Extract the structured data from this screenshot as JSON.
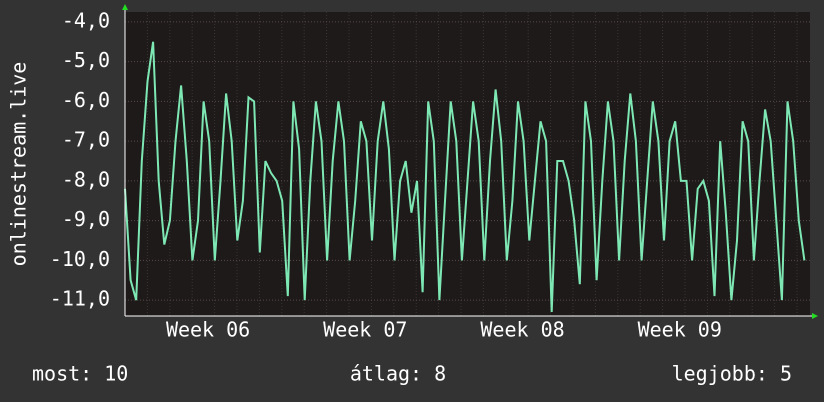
{
  "chart_data": {
    "type": "line",
    "y_label": "onlinestream.live",
    "x": [
      0,
      0.25,
      0.5,
      0.75,
      1,
      1.25,
      1.5,
      1.75,
      2,
      2.25,
      2.5,
      2.75,
      3,
      3.25,
      3.5,
      3.75,
      4,
      4.25,
      4.5,
      4.75,
      5,
      5.25,
      5.5,
      5.75,
      6,
      6.25,
      6.5,
      6.75,
      7,
      7.25,
      7.5,
      7.75,
      8,
      8.25,
      8.5,
      8.75,
      9,
      9.25,
      9.5,
      9.75,
      10,
      10.25,
      10.5,
      10.75,
      11,
      11.25,
      11.5,
      11.75,
      12,
      12.25,
      12.5,
      12.75,
      13,
      13.25,
      13.5,
      13.75,
      14,
      14.25,
      14.5,
      14.75,
      15,
      15.25,
      15.5,
      15.75,
      16,
      16.25,
      16.5,
      16.75,
      17,
      17.25,
      17.5,
      17.75,
      18,
      18.25,
      18.5,
      18.75,
      19,
      19.25,
      19.5,
      19.75,
      20,
      20.25,
      20.5,
      20.75,
      21,
      21.25,
      21.5,
      21.75,
      22,
      22.25,
      22.5,
      22.75,
      23,
      23.25,
      23.5,
      23.75,
      24,
      24.25,
      24.5,
      24.75,
      25,
      25.25,
      25.5,
      25.75,
      26,
      26.25,
      26.5,
      26.75,
      27,
      27.25,
      27.5,
      27.75,
      28,
      28.25,
      28.5,
      28.75,
      29,
      29.25,
      29.5,
      29.75,
      30,
      30.25
    ],
    "series": [
      {
        "color": "#7ee8b4",
        "values": [
          -8.2,
          -10.5,
          -11.0,
          -7.5,
          -5.5,
          -4.5,
          -8.0,
          -9.6,
          -9.0,
          -7.0,
          -5.6,
          -7.5,
          -10.0,
          -9.0,
          -6.0,
          -7.0,
          -10.0,
          -8.0,
          -5.8,
          -7.0,
          -9.5,
          -8.5,
          -5.9,
          -6.0,
          -9.8,
          -7.5,
          -7.8,
          -8.0,
          -8.5,
          -10.9,
          -6.0,
          -7.2,
          -11.0,
          -8.0,
          -6.0,
          -7.0,
          -10.0,
          -7.5,
          -6.0,
          -7.0,
          -10.0,
          -8.5,
          -6.5,
          -7.0,
          -9.5,
          -7.0,
          -6.0,
          -7.2,
          -10.0,
          -8.0,
          -7.5,
          -8.8,
          -8.0,
          -10.8,
          -6.0,
          -7.0,
          -11.0,
          -8.5,
          -6.0,
          -7.0,
          -10.0,
          -8.0,
          -6.0,
          -7.0,
          -10.0,
          -7.5,
          -5.7,
          -7.0,
          -10.0,
          -8.5,
          -6.0,
          -7.0,
          -9.5,
          -8.0,
          -6.5,
          -7.0,
          -11.3,
          -7.5,
          -7.5,
          -8.0,
          -9.0,
          -10.6,
          -6.0,
          -7.0,
          -10.5,
          -8.0,
          -6.0,
          -7.0,
          -10.0,
          -7.5,
          -5.8,
          -7.0,
          -10.0,
          -8.0,
          -6.0,
          -7.0,
          -9.5,
          -7.0,
          -6.5,
          -8.0,
          -8.0,
          -10.0,
          -8.2,
          -8.0,
          -8.5,
          -10.9,
          -7.0,
          -8.8,
          -11.0,
          -9.5,
          -6.5,
          -7.0,
          -10.0,
          -8.0,
          -6.2,
          -7.0,
          -9.0,
          -11.0,
          -6.0,
          -7.0,
          -9.0,
          -10.0
        ]
      }
    ],
    "xlim": [
      0,
      30.5
    ],
    "xticks": [
      {
        "value": 3.7,
        "label": "Week 06"
      },
      {
        "value": 10.7,
        "label": "Week 07"
      },
      {
        "value": 17.7,
        "label": "Week 08"
      },
      {
        "value": 24.7,
        "label": "Week 09"
      }
    ],
    "ylim": [
      -11.4,
      -3.75
    ],
    "yticks": [
      {
        "value": -4,
        "label": "-4,0"
      },
      {
        "value": -5,
        "label": "-5,0"
      },
      {
        "value": -6,
        "label": "-6,0"
      },
      {
        "value": -7,
        "label": "-7,0"
      },
      {
        "value": -8,
        "label": "-8,0"
      },
      {
        "value": -9,
        "label": "-9,0"
      },
      {
        "value": -10,
        "label": "-10,0"
      },
      {
        "value": -11,
        "label": "-11,0"
      }
    ],
    "grid": true,
    "stats": [
      "most: 10",
      "átlag: 8",
      "legjobb: 5"
    ]
  }
}
